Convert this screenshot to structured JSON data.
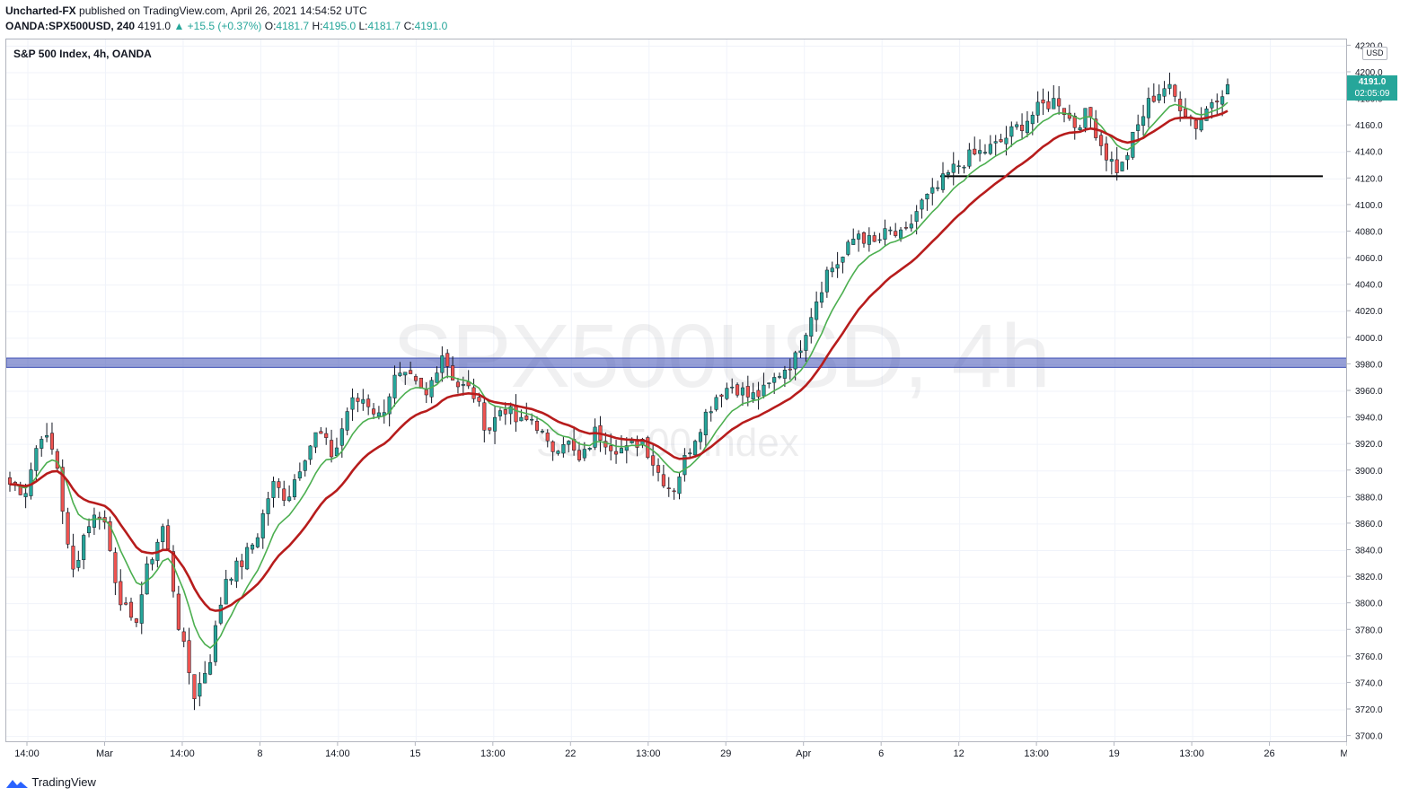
{
  "header": {
    "publisher": "Uncharted-FX",
    "publish_text": "published on TradingView.com, April 26, 2021 14:54:52 UTC",
    "symbol_line": "OANDA:SPX500USD, 240",
    "last": "4191.0",
    "change": "▲ +15.5 (+0.37%)",
    "o_label": "O:",
    "o_value": "4181.7",
    "h_label": "H:",
    "h_value": "4195.0",
    "l_label": "L:",
    "l_value": "4181.7",
    "c_label": "C:",
    "c_value": "4191.0"
  },
  "pane_title": "S&P 500 Index, 4h, OANDA",
  "watermark": {
    "symbol": "SPX500USD, 4h",
    "name": "S&P 500 Index"
  },
  "currency": "USD",
  "price_label": {
    "price": "4191.0",
    "countdown": "02:05:09"
  },
  "footer": {
    "brand": "TradingView"
  },
  "colors": {
    "up": "#26a69a",
    "down": "#ef5350",
    "ema_fast": "#4caf50",
    "ema_slow": "#b71c1c",
    "zone": "#3f51b5",
    "bg": "#ffffff"
  },
  "chart_data": {
    "type": "candlestick",
    "ylim": [
      3695,
      4225
    ],
    "y_ticks": [
      3700,
      3720,
      3740,
      3760,
      3780,
      3800,
      3820,
      3840,
      3860,
      3880,
      3900,
      3920,
      3940,
      3960,
      3980,
      4000,
      4020,
      4040,
      4060,
      4080,
      4100,
      4120,
      4140,
      4160,
      4180,
      4200,
      4220
    ],
    "x_ticks": [
      "14:00",
      "Mar",
      "14:00",
      "8",
      "14:00",
      "15",
      "13:00",
      "22",
      "13:00",
      "29",
      "Apr",
      "6",
      "12",
      "13:00",
      "19",
      "13:00",
      "26",
      "Ma"
    ],
    "key_points": [
      3890,
      3885,
      3930,
      3910,
      3820,
      3860,
      3870,
      3810,
      3780,
      3830,
      3860,
      3780,
      3730,
      3760,
      3820,
      3830,
      3850,
      3890,
      3880,
      3910,
      3930,
      3910,
      3950,
      3955,
      3940,
      3970,
      3968,
      3955,
      3990,
      3965,
      3960,
      3930,
      3950,
      3935,
      3940,
      3915,
      3925,
      3905,
      3930,
      3920,
      3915,
      3925,
      3900,
      3885,
      3915,
      3940,
      3960,
      3965,
      3955,
      3960,
      3975,
      3985,
      4020,
      4050,
      4060,
      4080,
      4070,
      4080,
      4075,
      4100,
      4110,
      4125,
      4135,
      4140,
      4145,
      4155,
      4165,
      4175,
      4180,
      4160,
      4170,
      4140,
      4125,
      4155,
      4180,
      4190,
      4175,
      4160,
      4180,
      4191
    ],
    "ema_fast": {
      "name": "",
      "desc": "green moving average"
    },
    "ema_slow": {
      "name": "",
      "desc": "red moving average"
    },
    "support_zone": [
      3978,
      3985
    ],
    "support_line": 4122
  }
}
